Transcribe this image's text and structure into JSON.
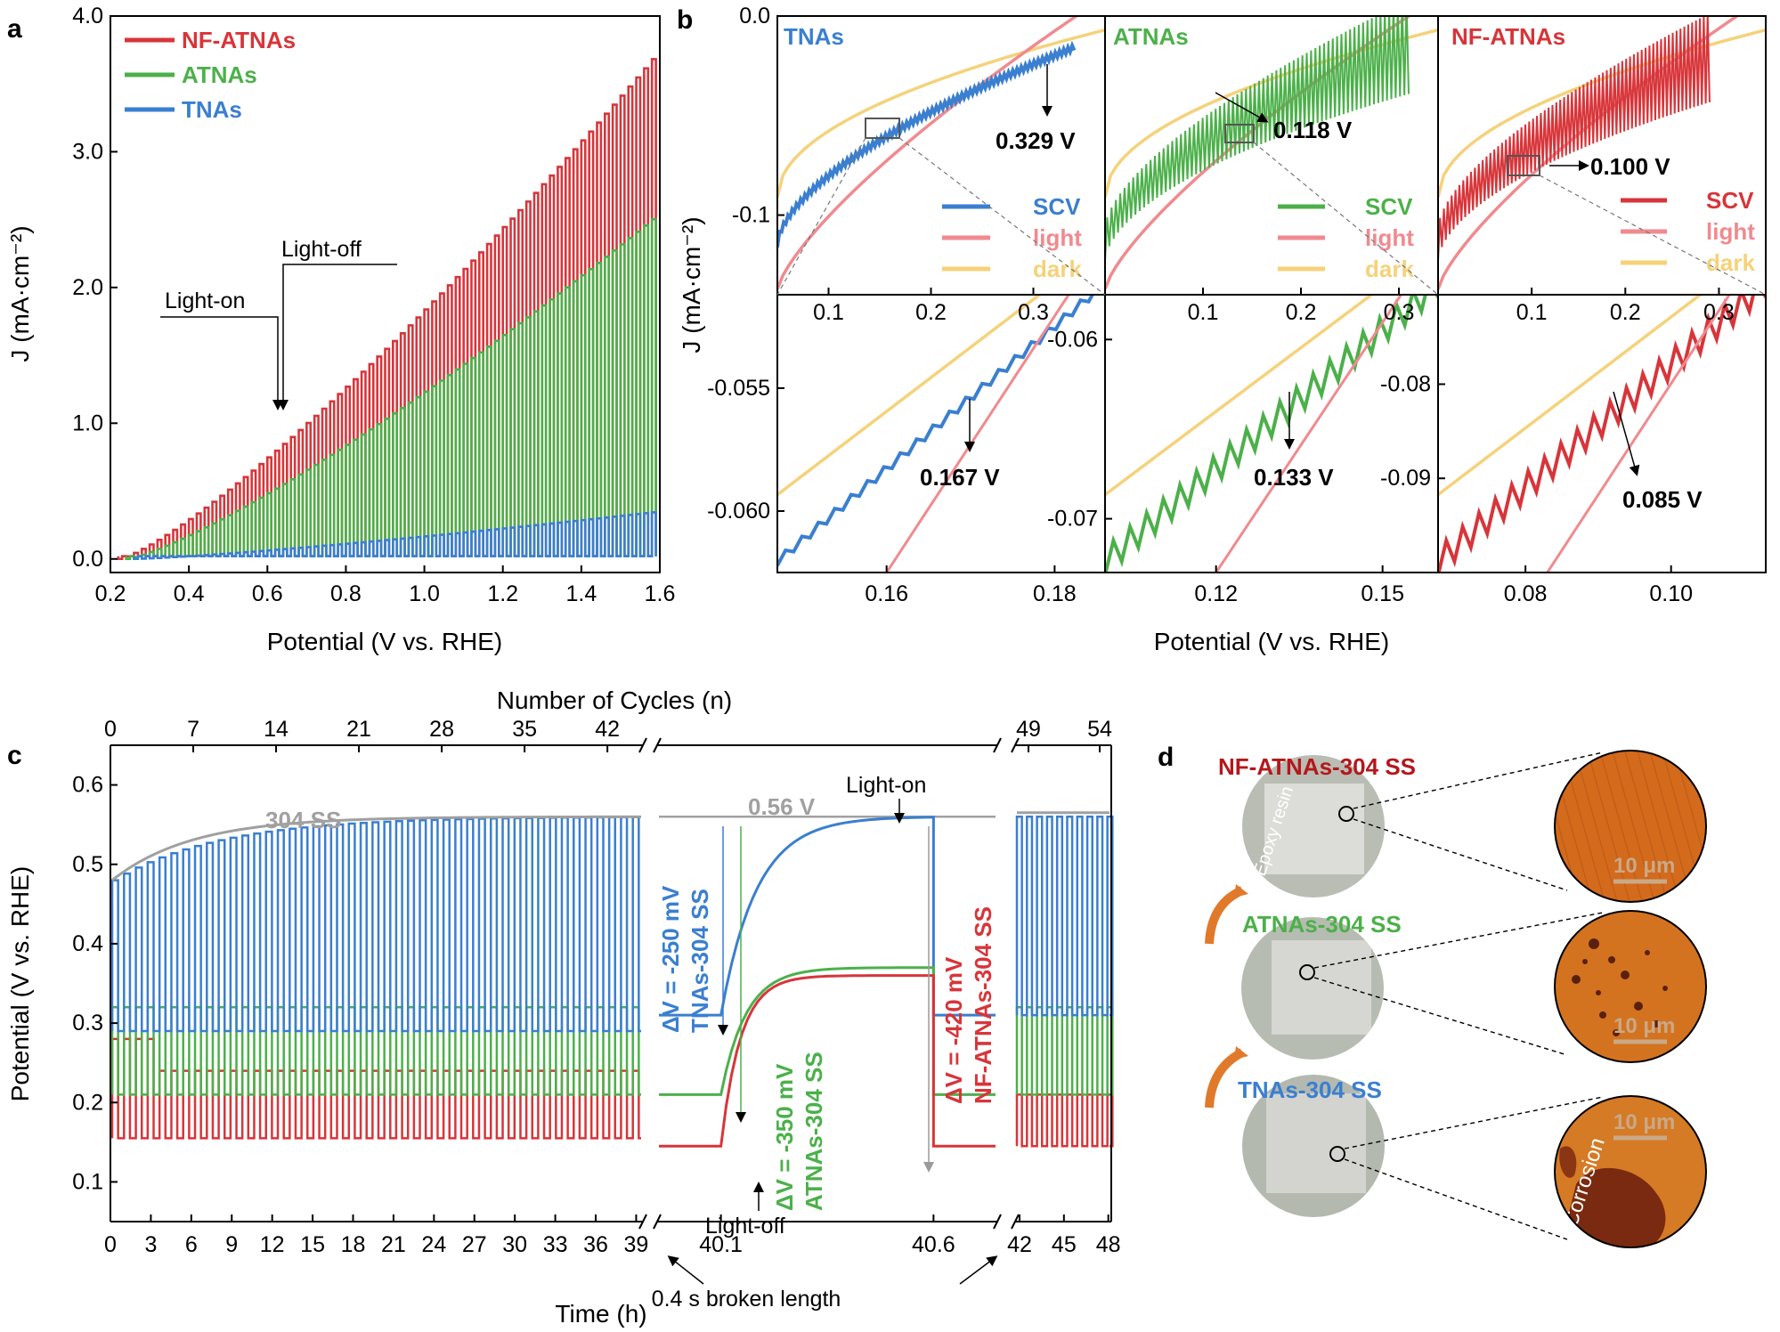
{
  "colors": {
    "nf": "#d7353a",
    "atnas": "#4cb04a",
    "tnas": "#3a7fd0",
    "light": "#f08a8f",
    "dark": "#f5d27a",
    "ss": "#a0a0a0",
    "copper": "#d2691e",
    "arrow_orange": "#e07a2a"
  },
  "panel_labels": {
    "a": "a",
    "b": "b",
    "c": "c",
    "d": "d"
  },
  "chart_data": [
    {
      "id": "a",
      "type": "line",
      "title": "",
      "xlabel": "Potential (V vs. RHE)",
      "ylabel": "J (mA·cm⁻²)",
      "xlim": [
        0.2,
        1.6
      ],
      "ylim": [
        -0.1,
        4.0
      ],
      "xticks": [
        "0.2",
        "0.4",
        "0.6",
        "0.8",
        "1.0",
        "1.2",
        "1.4",
        "1.6"
      ],
      "yticks": [
        "0.0",
        "1.0",
        "2.0",
        "3.0",
        "4.0"
      ],
      "series": [
        {
          "name": "NF-ATNAs",
          "onset": 0.22,
          "max": 3.75
        },
        {
          "name": "ATNAs",
          "onset": 0.24,
          "max": 2.55
        },
        {
          "name": "TNAs",
          "onset": 0.26,
          "max": 0.35
        }
      ],
      "annotations": [
        {
          "text": "Light-on",
          "x": 0.62,
          "y": 1.0
        },
        {
          "text": "Light-off",
          "x": 0.65,
          "y": 1.0
        }
      ]
    },
    {
      "id": "b",
      "type": "line",
      "xlabel": "Potential (V vs. RHE)",
      "ylabel": "J (mA·cm⁻²)",
      "subplots": [
        {
          "name": "TNAs",
          "xlim": [
            0.05,
            0.37
          ],
          "ylim": [
            -0.14,
            0.0
          ],
          "xticks": [
            "0.1",
            "0.2",
            "0.3"
          ],
          "yticks": [
            "0.0",
            "-0.1"
          ],
          "intersection": "0.329 V",
          "legend": [
            "SCV",
            "light",
            "dark"
          ]
        },
        {
          "name": "ATNAs",
          "xlim": [
            0.0,
            0.34
          ],
          "ylim": [
            -0.14,
            0.0
          ],
          "xticks": [
            "0.1",
            "0.2",
            "0.3"
          ],
          "intersection": "0.118 V",
          "legend": [
            "SCV",
            "light",
            "dark"
          ]
        },
        {
          "name": "NF-ATNAs",
          "xlim": [
            0.0,
            0.35
          ],
          "ylim": [
            -0.14,
            0.0
          ],
          "xticks": [
            "0.1",
            "0.2",
            "0.3"
          ],
          "intersection": "0.100 V",
          "legend": [
            "SCV",
            "light",
            "dark"
          ]
        },
        {
          "name": "TNAs-zoom",
          "xlim": [
            0.147,
            0.186
          ],
          "ylim": [
            -0.0625,
            -0.0512
          ],
          "xticks": [
            "0.16",
            "0.18"
          ],
          "yticks": [
            "-0.055",
            "-0.060"
          ],
          "intersection": "0.167 V"
        },
        {
          "name": "ATNAs-zoom",
          "xlim": [
            0.1,
            0.16
          ],
          "ylim": [
            -0.073,
            -0.0575
          ],
          "xticks": [
            "0.12",
            "0.15"
          ],
          "yticks": [
            "-0.06",
            "-0.07"
          ],
          "intersection": "0.133 V"
        },
        {
          "name": "NF-ATNAs-zoom",
          "xlim": [
            0.068,
            0.113
          ],
          "ylim": [
            -0.1,
            -0.0705
          ],
          "xticks": [
            "0.08",
            "0.10"
          ],
          "yticks": [
            "-0.08",
            "-0.09"
          ],
          "intersection": "0.085 V"
        }
      ]
    },
    {
      "id": "c",
      "type": "line",
      "xlabel": "Time (h)",
      "x2label": "Number of Cycles (n)",
      "ylabel": "Potential (V vs. RHE)",
      "ylim": [
        0.05,
        0.65
      ],
      "yticks": [
        "0.1",
        "0.2",
        "0.3",
        "0.4",
        "0.5",
        "0.6"
      ],
      "xticks_left": [
        "0",
        "3",
        "6",
        "9",
        "12",
        "15",
        "18",
        "21",
        "24",
        "27",
        "30",
        "33",
        "36",
        "39"
      ],
      "xticks_mid": [
        "40.1",
        "40.6"
      ],
      "xticks_right": [
        "42",
        "45",
        "48"
      ],
      "x2ticks_left": [
        "0",
        "7",
        "14",
        "21",
        "28",
        "35",
        "42"
      ],
      "x2ticks_right": [
        "49",
        "54"
      ],
      "series": [
        {
          "name": "304 SS",
          "value": 0.56
        },
        {
          "name": "TNAs-304 SS",
          "high": 0.56,
          "low": 0.31
        },
        {
          "name": "ATNAs-304 SS",
          "high": 0.37,
          "low": 0.21
        },
        {
          "name": "NF-ATNAs-304 SS",
          "high": 0.36,
          "low": 0.145
        }
      ],
      "annotations": {
        "ss_label": "304 SS",
        "ss_value": "0.56 V",
        "light_on": "Light-on",
        "light_off": "Light-off",
        "dv_tnas_1": "ΔV = -250 mV",
        "dv_tnas_2": "TNAs-304 SS",
        "dv_atnas_1": "ΔV = -350 mV",
        "dv_atnas_2": "ATNAs-304 SS",
        "dv_nf_1": "ΔV = -420 mV",
        "dv_nf_2": "NF-ATNAs-304 SS",
        "broken": "0.4 s broken length"
      }
    }
  ],
  "panel_d": {
    "samples": [
      "NF-ATNAs-304 SS",
      "ATNAs-304 SS",
      "TNAs-304 SS"
    ],
    "epoxy": "Epoxy resin",
    "scale": "10 μm",
    "corrosion": "Corrosion"
  }
}
